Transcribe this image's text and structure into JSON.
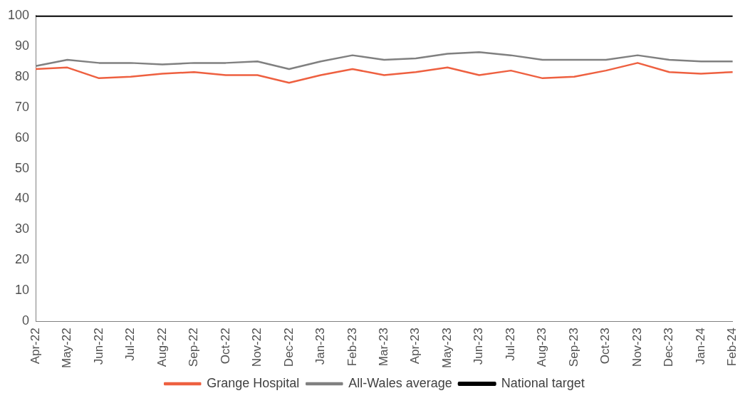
{
  "chart_data": {
    "type": "line",
    "categories": [
      "Apr-22",
      "May-22",
      "Jun-22",
      "Jul-22",
      "Aug-22",
      "Sep-22",
      "Oct-22",
      "Nov-22",
      "Dec-22",
      "Jan-23",
      "Feb-23",
      "Mar-23",
      "Apr-23",
      "May-23",
      "Jun-23",
      "Jul-23",
      "Aug-23",
      "Sep-23",
      "Oct-23",
      "Nov-23",
      "Dec-23",
      "Jan-24",
      "Feb-24"
    ],
    "series": [
      {
        "name": "Grange Hospital",
        "color": "#ee6040",
        "values": [
          82.5,
          83,
          79.5,
          80,
          81,
          81.5,
          80.5,
          80.5,
          78,
          80.5,
          82.5,
          80.5,
          81.5,
          83,
          80.5,
          82,
          79.5,
          80,
          82,
          84.5,
          81.5,
          81,
          81.5
        ]
      },
      {
        "name": "All-Wales average",
        "color": "#808080",
        "values": [
          83.5,
          85.5,
          84.5,
          84.5,
          84,
          84.5,
          84.5,
          85,
          82.5,
          85,
          87,
          85.5,
          86,
          87.5,
          88,
          87,
          85.5,
          85.5,
          85.5,
          87,
          85.5,
          85,
          85
        ]
      },
      {
        "name": "National target",
        "color": "#000000",
        "values": [
          100,
          100,
          100,
          100,
          100,
          100,
          100,
          100,
          100,
          100,
          100,
          100,
          100,
          100,
          100,
          100,
          100,
          100,
          100,
          100,
          100,
          100,
          100
        ]
      }
    ],
    "ylim": [
      0,
      100
    ],
    "yticks": [
      0,
      10,
      20,
      30,
      40,
      50,
      60,
      70,
      80,
      90,
      100
    ],
    "grid": false,
    "legend": "bottom",
    "marker": "none",
    "line_style": "solid"
  }
}
